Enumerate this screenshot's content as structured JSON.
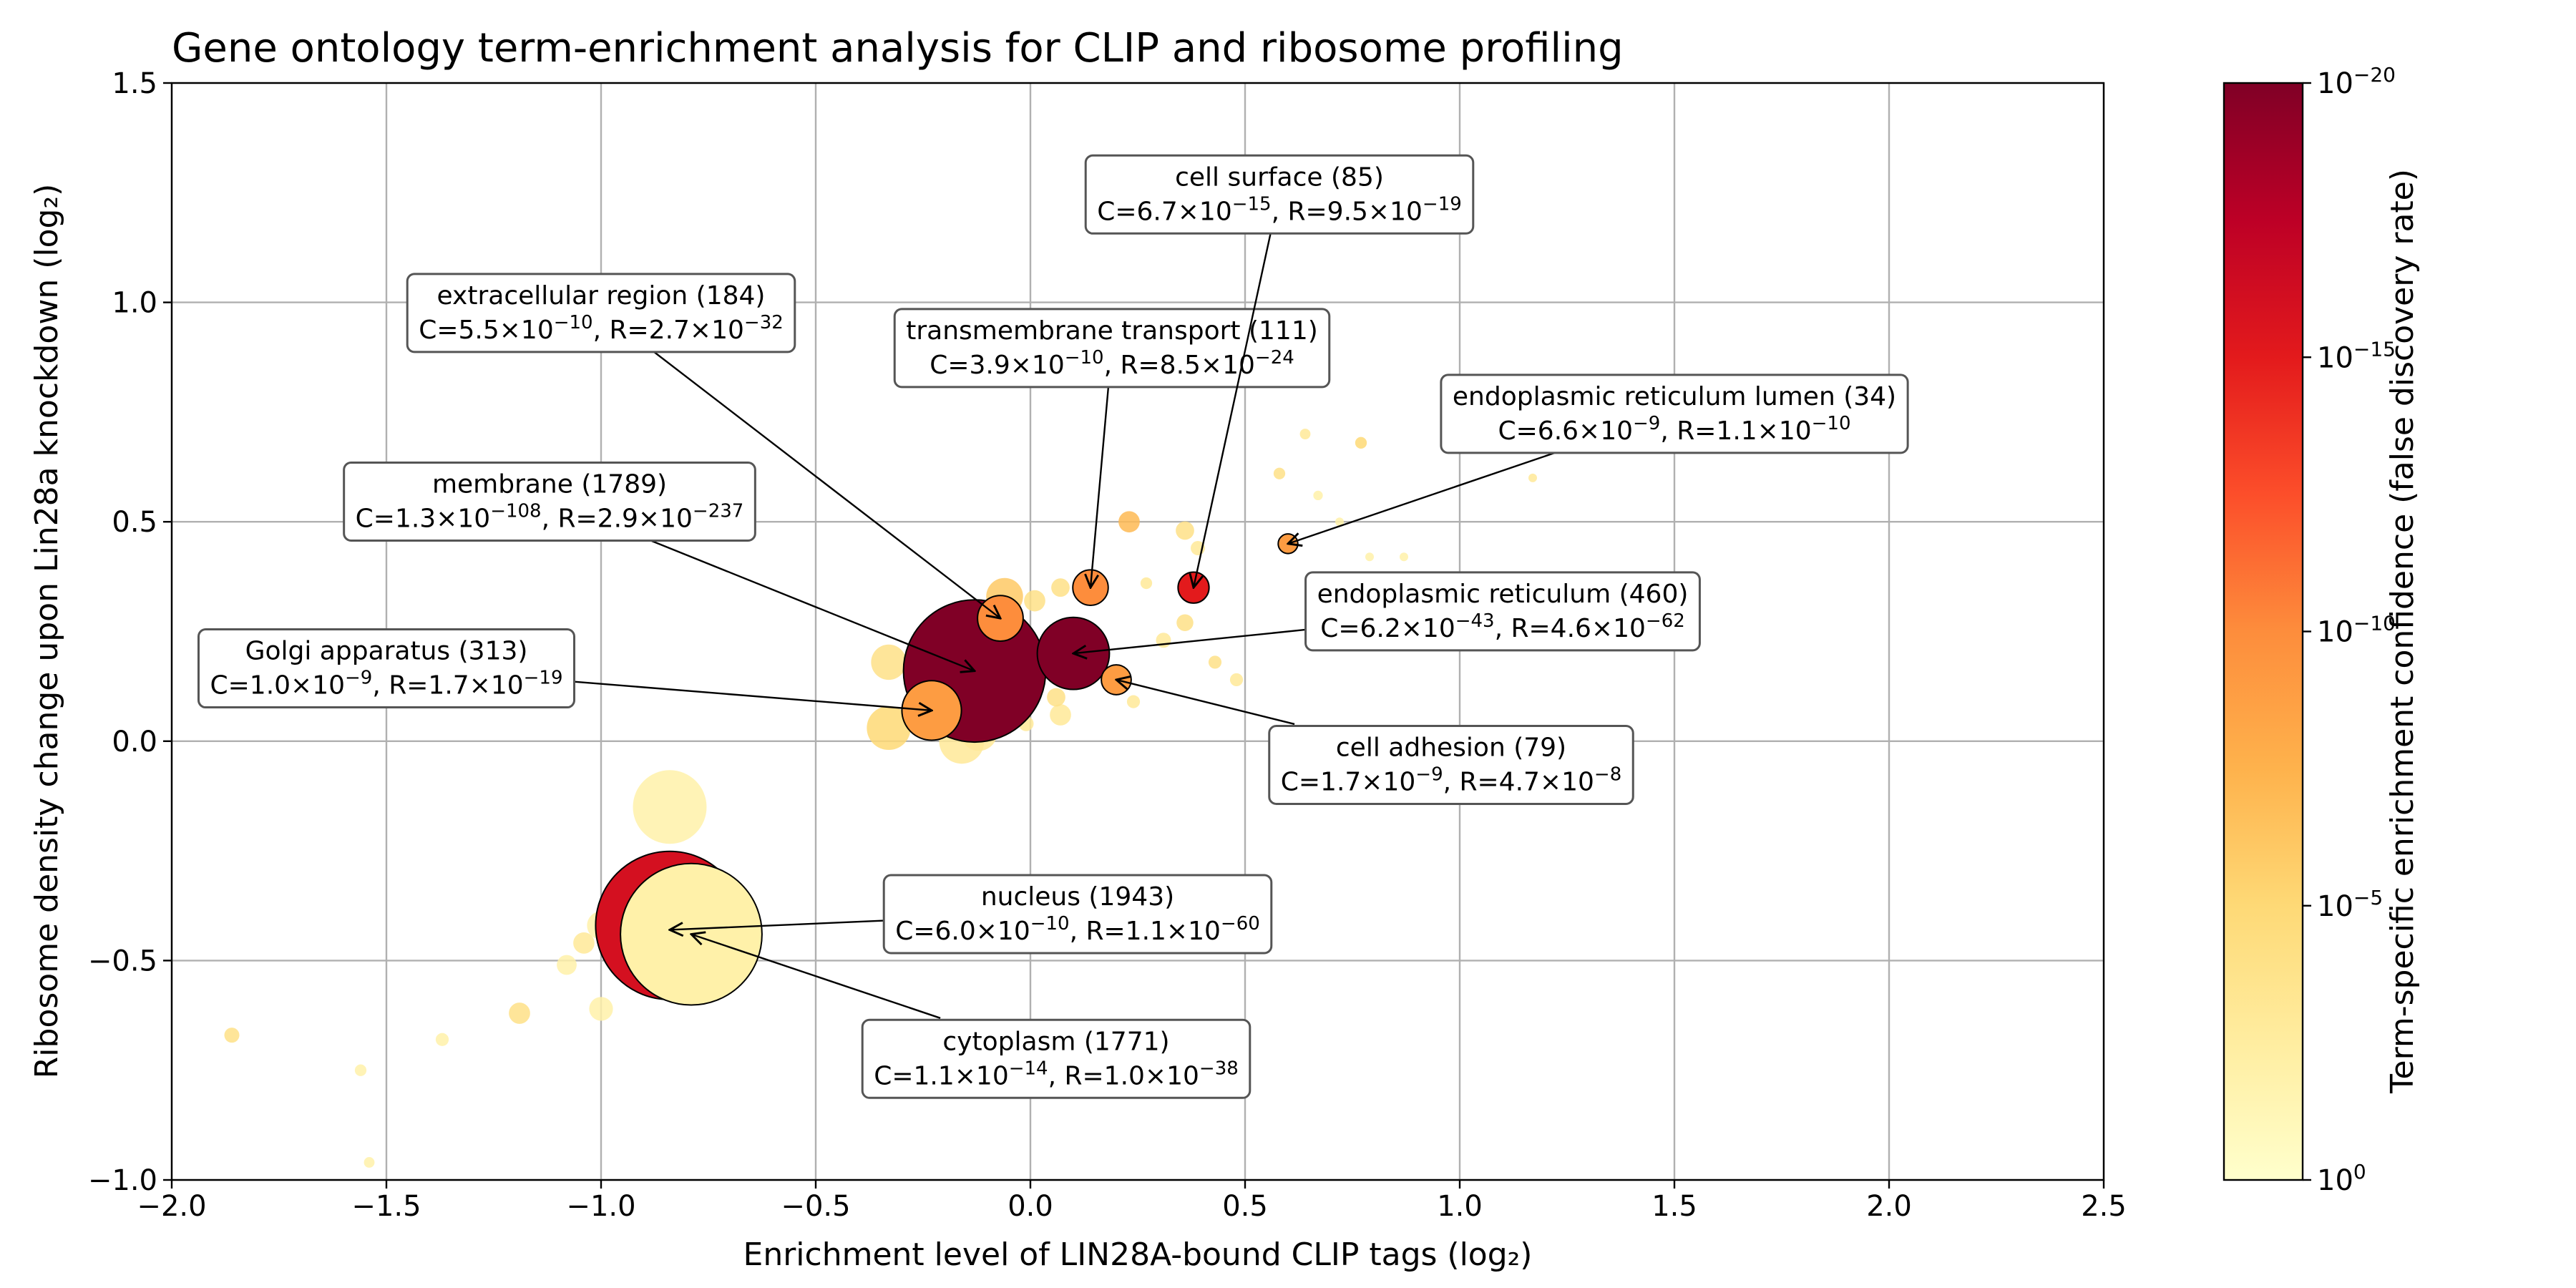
{
  "chart_data": {
    "type": "scatter",
    "title": "Gene ontology term-enrichment analysis for CLIP and ribosome profiling",
    "xlabel": "Enrichment level of LIN28A-bound CLIP tags (log₂)",
    "ylabel": "Ribosome density change upon Lin28a knockdown (log₂)",
    "xlim": [
      -2.0,
      2.5
    ],
    "ylim": [
      -1.0,
      1.5
    ],
    "x_ticks": [
      -2.0,
      -1.5,
      -1.0,
      -0.5,
      0.0,
      0.5,
      1.0,
      1.5,
      2.0,
      2.5
    ],
    "x_tick_labels": [
      "−2.0",
      "−1.5",
      "−1.0",
      "−0.5",
      "0.0",
      "0.5",
      "1.0",
      "1.5",
      "2.0",
      "2.5"
    ],
    "y_ticks": [
      -1.0,
      -0.5,
      0.0,
      0.5,
      1.0,
      1.5
    ],
    "y_tick_labels": [
      "−1.0",
      "−0.5",
      "0.0",
      "0.5",
      "1.0",
      "1.5"
    ],
    "grid": true,
    "colormap": [
      "#ffffcc",
      "#ffeda0",
      "#fed976",
      "#feb24c",
      "#fd8d3c",
      "#fc4e2a",
      "#e31a1c",
      "#bd0026",
      "#800026"
    ],
    "colorbar": {
      "label": "Term-specific enrichment confidence (false discovery rate)",
      "scale": "log",
      "exponent_range": [
        0,
        -20
      ],
      "ticks": [
        {
          "exp": 0,
          "base": "10",
          "sup": "0"
        },
        {
          "exp": -5,
          "base": "10",
          "sup": "−5"
        },
        {
          "exp": -10,
          "base": "10",
          "sup": "−10"
        },
        {
          "exp": -15,
          "base": "10",
          "sup": "−15"
        },
        {
          "exp": -20,
          "base": "10",
          "sup": "−20"
        }
      ]
    },
    "points": [
      {
        "x": -0.13,
        "y": 0.16,
        "size": 1789,
        "fdr_exp": -20,
        "outline": true
      },
      {
        "x": -0.84,
        "y": -0.42,
        "size": 1943,
        "fdr_exp": -16,
        "outline": true
      },
      {
        "x": -0.79,
        "y": -0.44,
        "size": 1771,
        "fdr_exp": -2,
        "outline": true
      },
      {
        "x": 0.1,
        "y": 0.2,
        "size": 460,
        "fdr_exp": -20,
        "outline": true
      },
      {
        "x": -0.23,
        "y": 0.07,
        "size": 313,
        "fdr_exp": -9,
        "outline": true
      },
      {
        "x": -0.07,
        "y": 0.28,
        "size": 184,
        "fdr_exp": -10,
        "outline": true
      },
      {
        "x": 0.14,
        "y": 0.35,
        "size": 111,
        "fdr_exp": -10,
        "outline": true
      },
      {
        "x": 0.38,
        "y": 0.35,
        "size": 85,
        "fdr_exp": -15,
        "outline": true
      },
      {
        "x": 0.2,
        "y": 0.14,
        "size": 79,
        "fdr_exp": -9,
        "outline": true
      },
      {
        "x": 0.6,
        "y": 0.45,
        "size": 34,
        "fdr_exp": -9,
        "outline": true
      },
      {
        "x": -0.84,
        "y": -0.15,
        "size": 480,
        "fdr_exp": -2,
        "outline": false
      },
      {
        "x": -0.06,
        "y": 0.33,
        "size": 120,
        "fdr_exp": -6,
        "outline": false
      },
      {
        "x": -0.33,
        "y": 0.18,
        "size": 110,
        "fdr_exp": -4,
        "outline": false
      },
      {
        "x": -0.33,
        "y": 0.03,
        "size": 170,
        "fdr_exp": -5,
        "outline": false
      },
      {
        "x": -0.16,
        "y": 0.0,
        "size": 180,
        "fdr_exp": -3,
        "outline": false
      },
      {
        "x": -0.12,
        "y": 0.02,
        "size": 120,
        "fdr_exp": -3,
        "outline": false
      },
      {
        "x": -0.11,
        "y": 0.24,
        "size": 70,
        "fdr_exp": -6,
        "outline": false
      },
      {
        "x": 0.01,
        "y": 0.32,
        "size": 40,
        "fdr_exp": -4,
        "outline": false
      },
      {
        "x": 0.07,
        "y": 0.35,
        "size": 30,
        "fdr_exp": -4,
        "outline": false
      },
      {
        "x": 0.07,
        "y": 0.06,
        "size": 40,
        "fdr_exp": -3,
        "outline": false
      },
      {
        "x": 0.06,
        "y": 0.1,
        "size": 30,
        "fdr_exp": -4,
        "outline": false
      },
      {
        "x": -0.01,
        "y": 0.04,
        "size": 20,
        "fdr_exp": -3,
        "outline": false
      },
      {
        "x": 0.23,
        "y": 0.5,
        "size": 40,
        "fdr_exp": -7,
        "outline": false
      },
      {
        "x": 0.36,
        "y": 0.48,
        "size": 30,
        "fdr_exp": -4,
        "outline": false
      },
      {
        "x": 0.36,
        "y": 0.27,
        "size": 25,
        "fdr_exp": -4,
        "outline": false
      },
      {
        "x": 0.31,
        "y": 0.23,
        "size": 20,
        "fdr_exp": -3,
        "outline": false
      },
      {
        "x": 0.27,
        "y": 0.36,
        "size": 12,
        "fdr_exp": -3,
        "outline": false
      },
      {
        "x": 0.39,
        "y": 0.44,
        "size": 18,
        "fdr_exp": -3,
        "outline": false
      },
      {
        "x": 0.43,
        "y": 0.18,
        "size": 15,
        "fdr_exp": -4,
        "outline": false
      },
      {
        "x": 0.48,
        "y": 0.14,
        "size": 15,
        "fdr_exp": -3,
        "outline": false
      },
      {
        "x": 0.24,
        "y": 0.09,
        "size": 15,
        "fdr_exp": -3,
        "outline": false
      },
      {
        "x": 0.58,
        "y": 0.61,
        "size": 12,
        "fdr_exp": -4,
        "outline": false
      },
      {
        "x": 0.64,
        "y": 0.7,
        "size": 10,
        "fdr_exp": -3,
        "outline": false
      },
      {
        "x": 0.77,
        "y": 0.68,
        "size": 12,
        "fdr_exp": -5,
        "outline": false
      },
      {
        "x": 0.67,
        "y": 0.56,
        "size": 8,
        "fdr_exp": -2,
        "outline": false
      },
      {
        "x": 0.72,
        "y": 0.5,
        "size": 6,
        "fdr_exp": -2,
        "outline": false
      },
      {
        "x": 0.79,
        "y": 0.42,
        "size": 6,
        "fdr_exp": -2,
        "outline": false
      },
      {
        "x": 0.82,
        "y": 0.35,
        "size": 6,
        "fdr_exp": -2,
        "outline": false
      },
      {
        "x": 0.87,
        "y": 0.42,
        "size": 5,
        "fdr_exp": -2,
        "outline": false
      },
      {
        "x": 1.17,
        "y": 0.6,
        "size": 6,
        "fdr_exp": -3,
        "outline": false
      },
      {
        "x": -1.0,
        "y": -0.42,
        "size": 70,
        "fdr_exp": -2,
        "outline": false
      },
      {
        "x": -1.04,
        "y": -0.46,
        "size": 40,
        "fdr_exp": -3,
        "outline": false
      },
      {
        "x": -1.08,
        "y": -0.51,
        "size": 35,
        "fdr_exp": -2,
        "outline": false
      },
      {
        "x": -0.9,
        "y": -0.43,
        "size": 40,
        "fdr_exp": -4,
        "outline": false
      },
      {
        "x": -1.19,
        "y": -0.62,
        "size": 40,
        "fdr_exp": -4,
        "outline": false
      },
      {
        "x": -1.0,
        "y": -0.61,
        "size": 50,
        "fdr_exp": -2,
        "outline": false
      },
      {
        "x": -1.86,
        "y": -0.67,
        "size": 20,
        "fdr_exp": -4,
        "outline": false
      },
      {
        "x": -1.37,
        "y": -0.68,
        "size": 15,
        "fdr_exp": -2,
        "outline": false
      },
      {
        "x": -1.56,
        "y": -0.75,
        "size": 12,
        "fdr_exp": -2,
        "outline": false
      },
      {
        "x": -1.54,
        "y": -0.96,
        "size": 10,
        "fdr_exp": -2,
        "outline": false
      }
    ],
    "annotations": [
      {
        "x": -0.13,
        "y": 0.16,
        "term": "membrane (1789)",
        "c_mant": "C=1.3×10",
        "c_exp": "−108",
        "r_mant": ", R=2.9×10",
        "r_exp": "−237",
        "tx": -1.12,
        "ty": 0.55
      },
      {
        "x": -0.07,
        "y": 0.28,
        "term": "extracellular region (184)",
        "c_mant": "C=5.5×10",
        "c_exp": "−10",
        "r_mant": ", R=2.7×10",
        "r_exp": "−32",
        "tx": -1.0,
        "ty": 0.98
      },
      {
        "x": 0.14,
        "y": 0.35,
        "term": "transmembrane transport (111)",
        "c_mant": "C=3.9×10",
        "c_exp": "−10",
        "r_mant": ", R=8.5×10",
        "r_exp": "−24",
        "tx": 0.19,
        "ty": 0.9
      },
      {
        "x": 0.38,
        "y": 0.35,
        "term": "cell surface (85)",
        "c_mant": "C=6.7×10",
        "c_exp": "−15",
        "r_mant": ", R=9.5×10",
        "r_exp": "−19",
        "tx": 0.58,
        "ty": 1.25
      },
      {
        "x": 0.6,
        "y": 0.45,
        "term": "endoplasmic reticulum lumen (34)",
        "c_mant": "C=6.6×10",
        "c_exp": "−9",
        "r_mant": ", R=1.1×10",
        "r_exp": "−10",
        "tx": 1.5,
        "ty": 0.75
      },
      {
        "x": 0.1,
        "y": 0.2,
        "term": "endoplasmic reticulum (460)",
        "c_mant": "C=6.2×10",
        "c_exp": "−43",
        "r_mant": ", R=4.6×10",
        "r_exp": "−62",
        "tx": 1.1,
        "ty": 0.3
      },
      {
        "x": -0.23,
        "y": 0.07,
        "term": "Golgi apparatus (313)",
        "c_mant": "C=1.0×10",
        "c_exp": "−9",
        "r_mant": ", R=1.7×10",
        "r_exp": "−19",
        "tx": -1.5,
        "ty": 0.17
      },
      {
        "x": 0.2,
        "y": 0.14,
        "term": "cell adhesion (79)",
        "c_mant": "C=1.7×10",
        "c_exp": "−9",
        "r_mant": ", R=4.7×10",
        "r_exp": "−8",
        "tx": 0.98,
        "ty": -0.05
      },
      {
        "x": -0.84,
        "y": -0.43,
        "term": "nucleus (1943)",
        "c_mant": "C=6.0×10",
        "c_exp": "−10",
        "r_mant": ", R=1.1×10",
        "r_exp": "−60",
        "tx": 0.11,
        "ty": -0.39
      },
      {
        "x": -0.79,
        "y": -0.44,
        "term": "cytoplasm (1771)",
        "c_mant": "C=1.1×10",
        "c_exp": "−14",
        "r_mant": ", R=1.0×10",
        "r_exp": "−38",
        "tx": 0.06,
        "ty": -0.72
      }
    ]
  }
}
